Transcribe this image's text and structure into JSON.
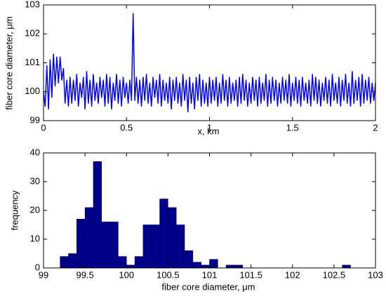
{
  "chart_data": [
    {
      "type": "line",
      "xlabel": "x, km",
      "ylabel": "fiber core diameter, μm",
      "xlim": [
        0,
        2
      ],
      "xticks": [
        0,
        0.5,
        1,
        1.5,
        2
      ],
      "ylim": [
        99,
        103
      ],
      "yticks": [
        99,
        100,
        101,
        102,
        103
      ],
      "series": [
        {
          "color": "#0000ff",
          "x": [
            0,
            0.01,
            0.02,
            0.03,
            0.04,
            0.05,
            0.06,
            0.07,
            0.08,
            0.09,
            0.1,
            0.11,
            0.12,
            0.13,
            0.14,
            0.15,
            0.16,
            0.17,
            0.18,
            0.19,
            0.2,
            0.21,
            0.22,
            0.23,
            0.24,
            0.25,
            0.26,
            0.27,
            0.28,
            0.29,
            0.3,
            0.31,
            0.32,
            0.33,
            0.34,
            0.35,
            0.36,
            0.37,
            0.38,
            0.39,
            0.4,
            0.41,
            0.42,
            0.43,
            0.44,
            0.45,
            0.46,
            0.47,
            0.48,
            0.49,
            0.5,
            0.51,
            0.52,
            0.53,
            0.54,
            0.55,
            0.56,
            0.57,
            0.58,
            0.59,
            0.6,
            0.61,
            0.62,
            0.63,
            0.64,
            0.65,
            0.66,
            0.67,
            0.68,
            0.69,
            0.7,
            0.71,
            0.72,
            0.73,
            0.74,
            0.75,
            0.76,
            0.77,
            0.78,
            0.79,
            0.8,
            0.81,
            0.82,
            0.83,
            0.84,
            0.85,
            0.86,
            0.87,
            0.88,
            0.89,
            0.9,
            0.91,
            0.92,
            0.93,
            0.94,
            0.95,
            0.96,
            0.97,
            0.98,
            0.99,
            1,
            1.01,
            1.02,
            1.03,
            1.04,
            1.05,
            1.06,
            1.07,
            1.08,
            1.09,
            1.1,
            1.11,
            1.12,
            1.13,
            1.14,
            1.15,
            1.16,
            1.17,
            1.18,
            1.19,
            1.2,
            1.21,
            1.22,
            1.23,
            1.24,
            1.25,
            1.26,
            1.27,
            1.28,
            1.29,
            1.3,
            1.31,
            1.32,
            1.33,
            1.34,
            1.35,
            1.36,
            1.37,
            1.38,
            1.39,
            1.4,
            1.41,
            1.42,
            1.43,
            1.44,
            1.45,
            1.46,
            1.47,
            1.48,
            1.49,
            1.5,
            1.51,
            1.52,
            1.53,
            1.54,
            1.55,
            1.56,
            1.57,
            1.58,
            1.59,
            1.6,
            1.61,
            1.62,
            1.63,
            1.64,
            1.65,
            1.66,
            1.67,
            1.68,
            1.69,
            1.7,
            1.71,
            1.72,
            1.73,
            1.74,
            1.75,
            1.76,
            1.77,
            1.78,
            1.79,
            1.8,
            1.81,
            1.82,
            1.83,
            1.84,
            1.85,
            1.86,
            1.87,
            1.88,
            1.89,
            1.9,
            1.91,
            1.92,
            1.93,
            1.94,
            1.95,
            1.96,
            1.97,
            1.98,
            1.99,
            2
          ],
          "values": [
            100.0,
            99.5,
            100.9,
            99.4,
            101.1,
            99.8,
            101.3,
            100.2,
            101.2,
            100.3,
            101.2,
            100.4,
            100.8,
            99.6,
            100.4,
            99.5,
            100.5,
            99.6,
            100.4,
            99.7,
            100.6,
            99.5,
            100.3,
            99.8,
            100.5,
            99.4,
            100.7,
            99.6,
            100.4,
            99.5,
            100.6,
            99.7,
            100.3,
            99.6,
            100.5,
            99.8,
            100.4,
            99.5,
            100.6,
            99.6,
            100.5,
            99.4,
            100.3,
            99.7,
            100.6,
            99.6,
            100.4,
            99.5,
            100.5,
            99.8,
            100.3,
            99.6,
            100.4,
            99.7,
            102.7,
            99.7,
            100.5,
            99.6,
            100.4,
            99.5,
            100.5,
            99.7,
            100.6,
            99.6,
            100.3,
            99.5,
            100.5,
            99.8,
            100.4,
            99.6,
            100.6,
            99.5,
            100.4,
            99.7,
            100.3,
            99.6,
            100.5,
            99.4,
            100.4,
            99.7,
            100.5,
            99.6,
            100.3,
            99.5,
            100.6,
            99.7,
            100.4,
            99.3,
            100.5,
            99.6,
            100.3,
            99.4,
            100.5,
            99.7,
            100.6,
            99.5,
            100.4,
            99.6,
            100.3,
            99.5,
            100.5,
            99.6,
            100.4,
            99.7,
            100.5,
            99.5,
            100.3,
            99.6,
            100.6,
            99.7,
            100.4,
            99.5,
            100.5,
            99.6,
            100.3,
            99.7,
            100.4,
            99.5,
            100.5,
            99.6,
            100.6,
            99.7,
            100.4,
            99.5,
            100.3,
            99.6,
            100.5,
            99.7,
            100.4,
            99.5,
            100.5,
            99.6,
            100.3,
            99.7,
            100.6,
            99.5,
            100.4,
            99.6,
            100.5,
            99.7,
            100.4,
            99.5,
            100.3,
            99.6,
            100.5,
            99.7,
            100.4,
            99.6,
            100.6,
            99.5,
            100.3,
            99.7,
            100.5,
            99.6,
            100.4,
            99.5,
            100.5,
            99.7,
            100.3,
            99.6,
            100.4,
            99.5,
            100.6,
            99.7,
            100.5,
            99.6,
            100.4,
            99.5,
            100.3,
            99.7,
            100.5,
            99.6,
            100.4,
            99.5,
            100.6,
            99.7,
            100.3,
            99.6,
            100.5,
            99.5,
            100.4,
            99.7,
            100.6,
            99.6,
            100.3,
            99.5,
            100.7,
            99.6,
            100.4,
            99.7,
            100.5,
            99.5,
            100.6,
            99.6,
            100.4,
            99.7,
            100.5,
            99.6,
            100.3,
            99.7,
            100.3
          ]
        }
      ]
    },
    {
      "type": "histogram",
      "xlabel": "fiber core diameter, μm",
      "ylabel": "frequency",
      "xlim": [
        99,
        103
      ],
      "xticks": [
        99,
        99.5,
        100,
        100.5,
        101,
        101.5,
        102,
        102.5,
        103
      ],
      "ylim": [
        0,
        40
      ],
      "yticks": [
        0,
        10,
        20,
        30,
        40
      ],
      "color": "#00008b",
      "bins": [
        99.2,
        99.3,
        99.4,
        99.5,
        99.6,
        99.7,
        99.8,
        99.9,
        100,
        100.1,
        100.2,
        100.3,
        100.4,
        100.5,
        100.6,
        100.7,
        100.8,
        100.9,
        101,
        101.1,
        101.2,
        101.3,
        101.4,
        101.5,
        101.6,
        101.7,
        101.8,
        101.9,
        102,
        102.1,
        102.2,
        102.3,
        102.4,
        102.5,
        102.6,
        102.7
      ],
      "counts": [
        4,
        5,
        17,
        21,
        37,
        16,
        16,
        4,
        1,
        4,
        15,
        15,
        24,
        21,
        15,
        6,
        2,
        1,
        3,
        0,
        1,
        1,
        0,
        0,
        0,
        0,
        0,
        0,
        0,
        0,
        0,
        0,
        0,
        0,
        1
      ]
    }
  ]
}
